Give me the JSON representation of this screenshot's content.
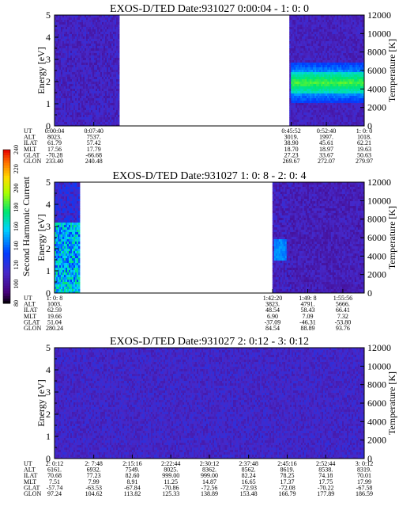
{
  "chart_data": [
    {
      "type": "heatmap",
      "title": "EXOS-D/TED   Date:931027  0:00:04 - 1: 0: 0",
      "ylabel": "Energy [eV]",
      "y2label": "Temperature [K]",
      "ylim": [
        0,
        5
      ],
      "y2lim": [
        0,
        12000
      ],
      "yticks": [
        "0",
        "1",
        "2",
        "3",
        "4",
        "5"
      ],
      "y2ticks": [
        "0",
        "2000",
        "4000",
        "6000",
        "8000",
        "10000",
        "12000"
      ],
      "xlim_minutes": [
        0.07,
        60
      ],
      "data_segments": [
        [
          0.07,
          12.5
        ],
        [
          45.5,
          60
        ]
      ],
      "orbit_rows": [
        "UT",
        "ALT",
        "ILAT",
        "MLT",
        "GLAT",
        "GLON"
      ],
      "orbit_columns": [
        {
          "minute": 0.07,
          "values": [
            "0:00:04",
            "8023.",
            "61.79",
            "17.56",
            "-70.28",
            "233.40"
          ]
        },
        {
          "minute": 7.67,
          "values": [
            "0:07:40",
            "7537.",
            "57.42",
            "17.79",
            "-66.68",
            "240.48"
          ]
        },
        {
          "minute": 45.87,
          "values": [
            "0:45:52",
            "3019.",
            "38.90",
            "18.70",
            "27.23",
            "269.67"
          ]
        },
        {
          "minute": 52.67,
          "values": [
            "0:52:40",
            "1997.",
            "45.61",
            "18.97",
            "33.67",
            "272.07"
          ]
        },
        {
          "minute": 60,
          "values": [
            "1: 0: 0",
            "1018.",
            "62.21",
            "19.63",
            "50.63",
            "279.97"
          ]
        }
      ],
      "features": [
        {
          "minute_range": [
            45.5,
            60
          ],
          "energy_center": 2.0,
          "energy_halfwidth": 0.45,
          "level": 165,
          "note": "band"
        }
      ]
    },
    {
      "type": "heatmap",
      "title": "EXOS-D/TED   Date:931027  1: 0: 8 - 2: 0: 4",
      "ylabel": "Energy [eV]",
      "y2label": "Temperature [K]",
      "ylim": [
        0,
        5
      ],
      "y2lim": [
        0,
        12000
      ],
      "yticks": [
        "0",
        "1",
        "2",
        "3",
        "4",
        "5"
      ],
      "y2ticks": [
        "0",
        "2000",
        "4000",
        "6000",
        "8000",
        "10000",
        "12000"
      ],
      "xlim_minutes": [
        60.13,
        120.07
      ],
      "data_segments": [
        [
          60.13,
          65.0
        ],
        [
          102.3,
          120.07
        ]
      ],
      "orbit_rows": [
        "UT",
        "ALT",
        "ILAT",
        "MLT",
        "GLAT",
        "GLON"
      ],
      "orbit_columns": [
        {
          "minute": 60.13,
          "values": [
            "1: 0: 8",
            "1003.",
            "62.59",
            "19.66",
            "51.04",
            "280.24"
          ]
        },
        {
          "minute": 102.33,
          "values": [
            "1:42:20",
            "3823.",
            "48.54",
            "6.90",
            "-37.09",
            "84.54"
          ]
        },
        {
          "minute": 109.13,
          "values": [
            "1:49: 8",
            "4791.",
            "58.43",
            "7.09",
            "-46.31",
            "88.89"
          ]
        },
        {
          "minute": 115.93,
          "values": [
            "1:55:56",
            "5666.",
            "66.41",
            "7.32",
            "-53.80",
            "93.76"
          ]
        }
      ]
    },
    {
      "type": "heatmap",
      "title": "EXOS-D/TED   Date:931027  2: 0:12 - 3: 0:12",
      "ylabel": "Energy [eV]",
      "y2label": "Temperature [K]",
      "ylim": [
        0,
        5
      ],
      "y2lim": [
        0,
        12000
      ],
      "yticks": [
        "0",
        "1",
        "2",
        "3",
        "4",
        "5"
      ],
      "y2ticks": [
        "0",
        "2000",
        "4000",
        "6000",
        "8000",
        "10000",
        "12000"
      ],
      "xlim_minutes": [
        120.2,
        180.2
      ],
      "data_segments": [
        [
          120.2,
          180.2
        ]
      ],
      "orbit_rows": [
        "UT",
        "ALT",
        "ILAT",
        "MLT",
        "GLAT",
        "GLON"
      ],
      "orbit_columns": [
        {
          "minute": 120.2,
          "values": [
            "2: 0:12",
            "6161.",
            "70.68",
            "7.51",
            "-57.74",
            "97.24"
          ]
        },
        {
          "minute": 127.8,
          "values": [
            "2: 7:48",
            "6932.",
            "77.23",
            "7.99",
            "-63.53",
            "104.62"
          ]
        },
        {
          "minute": 135.27,
          "values": [
            "2:15:16",
            "7549.",
            "82.60",
            "8.91",
            "-67.84",
            "113.82"
          ]
        },
        {
          "minute": 142.73,
          "values": [
            "2:22:44",
            "8025.",
            "999.00",
            "11.25",
            "-70.86",
            "125.33"
          ]
        },
        {
          "minute": 150.2,
          "values": [
            "2:30:12",
            "8362.",
            "999.00",
            "14.87",
            "-72.56",
            "138.89"
          ]
        },
        {
          "minute": 157.8,
          "values": [
            "2:37:48",
            "8562.",
            "82.24",
            "16.65",
            "-72.93",
            "153.48"
          ]
        },
        {
          "minute": 165.27,
          "values": [
            "2:45:16",
            "8619.",
            "78.25",
            "17.37",
            "-72.08",
            "166.79"
          ]
        },
        {
          "minute": 172.73,
          "values": [
            "2:52:44",
            "8538.",
            "74.18",
            "17.75",
            "-70.22",
            "177.89"
          ]
        },
        {
          "minute": 180.2,
          "values": [
            "3: 0:12",
            "8319.",
            "70.01",
            "17.99",
            "-67.58",
            "186.59"
          ]
        }
      ]
    }
  ],
  "colorbar": {
    "label": "Second Harmonic Current",
    "range": [
      80,
      240
    ],
    "ticks": [
      "80",
      "100",
      "120",
      "140",
      "160",
      "180",
      "200",
      "220",
      "240"
    ]
  }
}
